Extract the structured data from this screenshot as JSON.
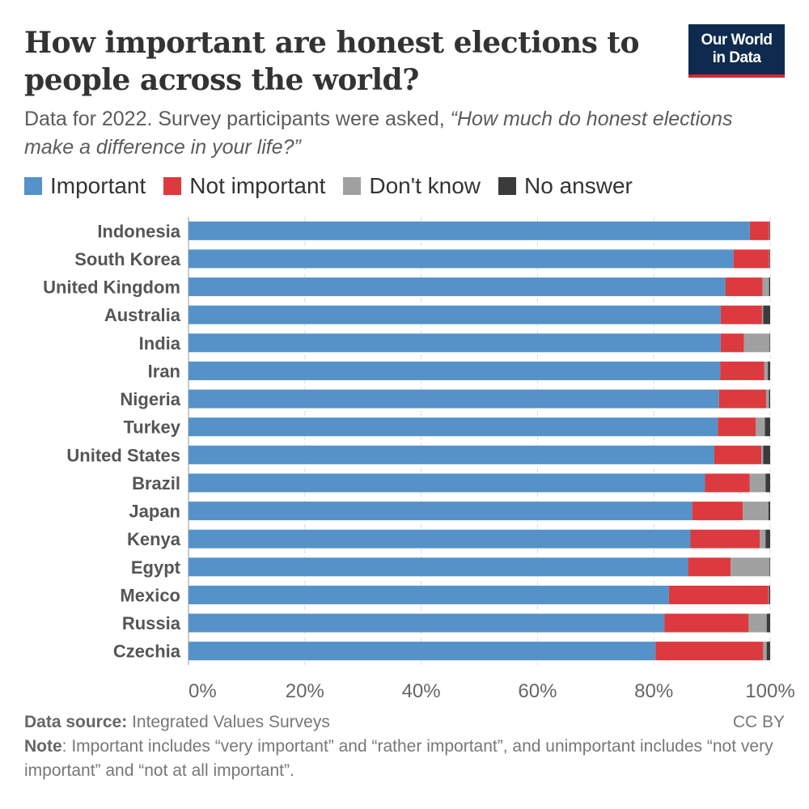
{
  "header": {
    "title": "How important are honest elections to people across the world?",
    "logo_line1": "Our World",
    "logo_line2": "in Data",
    "subtitle_plain": "Data for 2022. Survey participants were asked,",
    "subtitle_quote": "“How much do honest elections make a difference in your life?”"
  },
  "footer": {
    "source_label": "Data source:",
    "source_text": "Integrated Values Surveys",
    "license": "CC BY",
    "note_label": "Note",
    "note_text": ": Important includes “very important” and “rather important”, and unimportant includes “not very important” and “not at all important”."
  },
  "chart_data": {
    "type": "bar",
    "orientation": "horizontal",
    "stacked": true,
    "categories": [
      "Indonesia",
      "South Korea",
      "United Kingdom",
      "Australia",
      "India",
      "Iran",
      "Nigeria",
      "Turkey",
      "United States",
      "Brazil",
      "Japan",
      "Kenya",
      "Egypt",
      "Mexico",
      "Russia",
      "Czechia"
    ],
    "series": [
      {
        "name": "Important",
        "color": "#5492c9",
        "values": [
          96.5,
          93.7,
          92.3,
          91.5,
          91.5,
          91.4,
          91.2,
          91.0,
          90.4,
          88.8,
          86.6,
          86.3,
          85.9,
          82.6,
          81.8,
          80.3
        ]
      },
      {
        "name": "Not important",
        "color": "#dc3a3f",
        "values": [
          3.3,
          6.1,
          6.4,
          7.1,
          4.0,
          7.6,
          8.1,
          6.5,
          8.1,
          7.7,
          8.7,
          11.9,
          7.3,
          17.1,
          14.5,
          18.5
        ]
      },
      {
        "name": "Don't know",
        "color": "#a0a0a0",
        "values": [
          0.1,
          0.1,
          1.1,
          0.2,
          4.4,
          0.6,
          0.5,
          1.6,
          0.3,
          2.7,
          4.4,
          1.0,
          6.7,
          0.1,
          3.1,
          0.6
        ]
      },
      {
        "name": "No answer",
        "color": "#3b3b3b",
        "values": [
          0.1,
          0.1,
          0.2,
          1.2,
          0.1,
          0.4,
          0.2,
          0.9,
          1.2,
          0.8,
          0.3,
          0.8,
          0.1,
          0.2,
          0.6,
          0.6
        ]
      }
    ],
    "xaxis_ticks": [
      "0%",
      "20%",
      "40%",
      "60%",
      "80%",
      "100%"
    ],
    "xlim": [
      0,
      100
    ],
    "grid": true,
    "legend_placement": "top"
  }
}
